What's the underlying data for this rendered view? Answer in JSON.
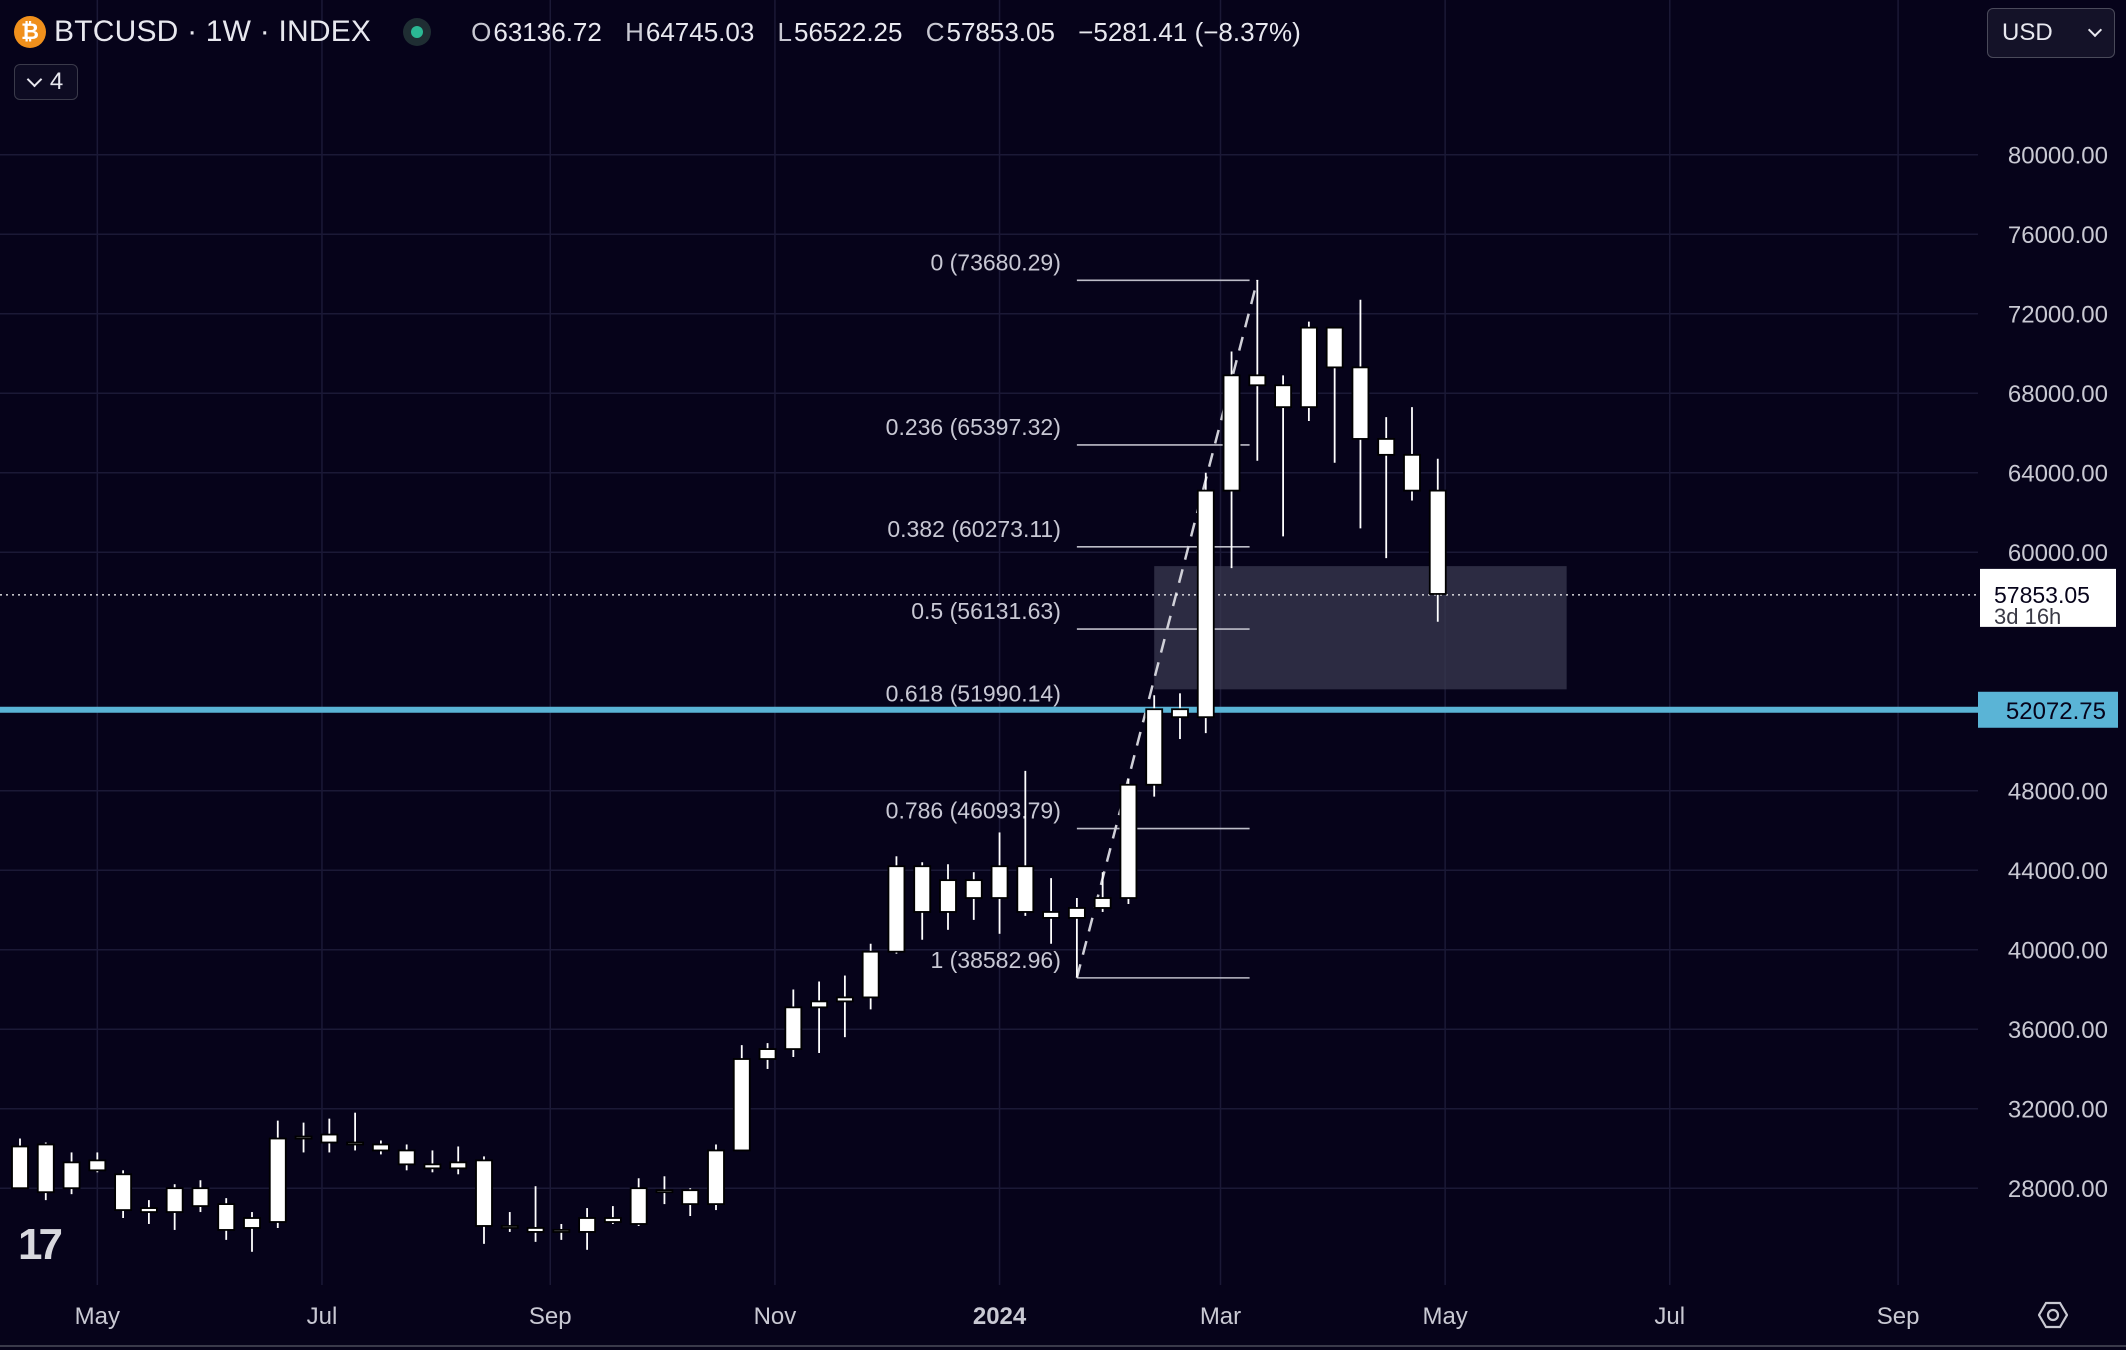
{
  "header": {
    "symbol_badge": "₿",
    "symbol_title": "BTCUSD · 1W · INDEX",
    "ohlc": {
      "open_label": "O",
      "open": "63136.72",
      "high_label": "H",
      "high": "64745.03",
      "low_label": "L",
      "low": "56522.25",
      "close_label": "C",
      "close": "57853.05",
      "change": "−5281.41 (−8.37%)"
    },
    "collapse_count": "4",
    "currency": "USD"
  },
  "colors": {
    "background": "#06031a",
    "candle_body": "#ffffff",
    "grid": "#1b1936",
    "hline": "#5ab4d6",
    "zone": "#3a3950"
  },
  "chart_data": {
    "type": "candlestick",
    "timeframe": "1W",
    "y_ticks": [
      "80000.00",
      "76000.00",
      "72000.00",
      "68000.00",
      "64000.00",
      "60000.00",
      "48000.00",
      "44000.00",
      "40000.00",
      "36000.00",
      "32000.00",
      "28000.00"
    ],
    "y_tick_values": [
      80000,
      76000,
      72000,
      68000,
      64000,
      60000,
      48000,
      44000,
      40000,
      36000,
      32000,
      28000
    ],
    "x_ticks": [
      {
        "label": "May",
        "date": "2023-05-01",
        "bold": false
      },
      {
        "label": "Jul",
        "date": "2023-07-01",
        "bold": false
      },
      {
        "label": "Sep",
        "date": "2023-09-01",
        "bold": false
      },
      {
        "label": "Nov",
        "date": "2023-11-01",
        "bold": false
      },
      {
        "label": "2024",
        "date": "2024-01-01",
        "bold": true
      },
      {
        "label": "Mar",
        "date": "2024-03-01",
        "bold": false
      },
      {
        "label": "May",
        "date": "2024-05-01",
        "bold": false
      },
      {
        "label": "Jul",
        "date": "2024-07-01",
        "bold": false
      },
      {
        "label": "Sep",
        "date": "2024-09-01",
        "bold": false
      }
    ],
    "x_range": [
      "2023-04-10",
      "2024-09-17"
    ],
    "ylim": [
      26400,
      82200
    ],
    "current_price": {
      "label": "57853.05",
      "countdown": "3d 16h",
      "value": 57853.05
    },
    "horizontal_line": {
      "label": "52072.75",
      "value": 52072.75
    },
    "zone": {
      "from": "2024-02-12",
      "to": "2024-06-03",
      "low": 53100,
      "high": 59300
    },
    "fib_retracement": {
      "from_date": "2024-01-22",
      "to_date": "2024-03-04",
      "levels": [
        {
          "label": "0 (73680.29)",
          "value": 73680.29
        },
        {
          "label": "0.236 (65397.32)",
          "value": 65397.32
        },
        {
          "label": "0.382 (60273.11)",
          "value": 60273.11
        },
        {
          "label": "0.5 (56131.63)",
          "value": 56131.63
        },
        {
          "label": "0.618 (51990.14)",
          "value": 51990.14
        },
        {
          "label": "0.786 (46093.79)",
          "value": 46093.79
        },
        {
          "label": "1 (38582.96)",
          "value": 38582.96
        }
      ]
    },
    "candles": [
      {
        "date": "2023-04-10",
        "o": 30100,
        "h": 30500,
        "l": 28500,
        "c": 28000
      },
      {
        "date": "2023-04-17",
        "o": 27800,
        "h": 30300,
        "l": 27400,
        "c": 30200
      },
      {
        "date": "2023-04-24",
        "o": 29300,
        "h": 29800,
        "l": 27700,
        "c": 28000
      },
      {
        "date": "2023-05-01",
        "o": 29400,
        "h": 29800,
        "l": 28800,
        "c": 28900
      },
      {
        "date": "2023-05-08",
        "o": 28700,
        "h": 28900,
        "l": 26500,
        "c": 26900
      },
      {
        "date": "2023-05-15",
        "o": 26800,
        "h": 27400,
        "l": 26200,
        "c": 27000
      },
      {
        "date": "2023-05-22",
        "o": 26800,
        "h": 28200,
        "l": 25900,
        "c": 28000
      },
      {
        "date": "2023-05-29",
        "o": 28000,
        "h": 28400,
        "l": 26800,
        "c": 27100
      },
      {
        "date": "2023-06-05",
        "o": 27200,
        "h": 27500,
        "l": 25400,
        "c": 25900
      },
      {
        "date": "2023-06-12",
        "o": 26000,
        "h": 26800,
        "l": 24800,
        "c": 26500
      },
      {
        "date": "2023-06-19",
        "o": 26300,
        "h": 31400,
        "l": 26000,
        "c": 30500
      },
      {
        "date": "2023-06-26",
        "o": 30500,
        "h": 31300,
        "l": 29800,
        "c": 30600
      },
      {
        "date": "2023-07-03",
        "o": 30300,
        "h": 31500,
        "l": 29800,
        "c": 30700
      },
      {
        "date": "2023-07-10",
        "o": 30300,
        "h": 31800,
        "l": 29900,
        "c": 30200
      },
      {
        "date": "2023-07-17",
        "o": 30200,
        "h": 30400,
        "l": 29700,
        "c": 29900
      },
      {
        "date": "2023-07-24",
        "o": 29900,
        "h": 30200,
        "l": 28900,
        "c": 29200
      },
      {
        "date": "2023-07-31",
        "o": 29200,
        "h": 29900,
        "l": 28800,
        "c": 29000
      },
      {
        "date": "2023-08-07",
        "o": 29000,
        "h": 30100,
        "l": 28700,
        "c": 29300
      },
      {
        "date": "2023-08-14",
        "o": 29400,
        "h": 29600,
        "l": 25200,
        "c": 26100
      },
      {
        "date": "2023-08-21",
        "o": 26100,
        "h": 26800,
        "l": 25800,
        "c": 26000
      },
      {
        "date": "2023-08-28",
        "o": 26000,
        "h": 28100,
        "l": 25300,
        "c": 25800
      },
      {
        "date": "2023-09-04",
        "o": 25800,
        "h": 26200,
        "l": 25400,
        "c": 25900
      },
      {
        "date": "2023-09-11",
        "o": 25800,
        "h": 27000,
        "l": 24900,
        "c": 26500
      },
      {
        "date": "2023-09-18",
        "o": 26500,
        "h": 27100,
        "l": 26200,
        "c": 26300
      },
      {
        "date": "2023-09-25",
        "o": 26200,
        "h": 28500,
        "l": 26100,
        "c": 28000
      },
      {
        "date": "2023-10-02",
        "o": 27900,
        "h": 28600,
        "l": 27200,
        "c": 27900
      },
      {
        "date": "2023-10-09",
        "o": 27900,
        "h": 28000,
        "l": 26600,
        "c": 27200
      },
      {
        "date": "2023-10-16",
        "o": 27200,
        "h": 30200,
        "l": 26900,
        "c": 29900
      },
      {
        "date": "2023-10-23",
        "o": 29900,
        "h": 35200,
        "l": 29900,
        "c": 34500
      },
      {
        "date": "2023-10-30",
        "o": 34500,
        "h": 35300,
        "l": 34000,
        "c": 35000
      },
      {
        "date": "2023-11-06",
        "o": 35000,
        "h": 38000,
        "l": 34600,
        "c": 37100
      },
      {
        "date": "2023-11-13",
        "o": 37100,
        "h": 38400,
        "l": 34800,
        "c": 37400
      },
      {
        "date": "2023-11-20",
        "o": 37400,
        "h": 38700,
        "l": 35600,
        "c": 37600
      },
      {
        "date": "2023-11-27",
        "o": 37600,
        "h": 40300,
        "l": 37000,
        "c": 39900
      },
      {
        "date": "2023-12-04",
        "o": 39900,
        "h": 44700,
        "l": 39800,
        "c": 44200
      },
      {
        "date": "2023-12-11",
        "o": 44200,
        "h": 44400,
        "l": 40500,
        "c": 41900
      },
      {
        "date": "2023-12-18",
        "o": 41900,
        "h": 44300,
        "l": 41000,
        "c": 43500
      },
      {
        "date": "2023-12-25",
        "o": 43500,
        "h": 43900,
        "l": 41500,
        "c": 42600
      },
      {
        "date": "2024-01-01",
        "o": 42600,
        "h": 45900,
        "l": 40800,
        "c": 44200
      },
      {
        "date": "2024-01-08",
        "o": 44200,
        "h": 49000,
        "l": 41700,
        "c": 41900
      },
      {
        "date": "2024-01-15",
        "o": 41900,
        "h": 43600,
        "l": 40300,
        "c": 41600
      },
      {
        "date": "2024-01-22",
        "o": 41600,
        "h": 42600,
        "l": 38600,
        "c": 42100
      },
      {
        "date": "2024-01-29",
        "o": 42100,
        "h": 43900,
        "l": 41900,
        "c": 42600
      },
      {
        "date": "2024-02-05",
        "o": 42600,
        "h": 48600,
        "l": 42300,
        "c": 48300
      },
      {
        "date": "2024-02-12",
        "o": 48300,
        "h": 52800,
        "l": 47700,
        "c": 52100
      },
      {
        "date": "2024-02-19",
        "o": 52100,
        "h": 52900,
        "l": 50600,
        "c": 51700
      },
      {
        "date": "2024-02-26",
        "o": 51700,
        "h": 64000,
        "l": 50900,
        "c": 63100
      },
      {
        "date": "2024-03-04",
        "o": 63100,
        "h": 70100,
        "l": 59200,
        "c": 68900
      },
      {
        "date": "2024-03-11",
        "o": 68900,
        "h": 73700,
        "l": 64600,
        "c": 68400
      },
      {
        "date": "2024-03-18",
        "o": 68400,
        "h": 68900,
        "l": 60800,
        "c": 67300
      },
      {
        "date": "2024-03-25",
        "o": 67300,
        "h": 71600,
        "l": 66600,
        "c": 71300
      },
      {
        "date": "2024-04-01",
        "o": 71300,
        "h": 71200,
        "l": 64500,
        "c": 69300
      },
      {
        "date": "2024-04-08",
        "o": 69300,
        "h": 72700,
        "l": 61200,
        "c": 65700
      },
      {
        "date": "2024-04-15",
        "o": 65700,
        "h": 66800,
        "l": 59700,
        "c": 64900
      },
      {
        "date": "2024-04-22",
        "o": 64900,
        "h": 67300,
        "l": 62600,
        "c": 63100
      },
      {
        "date": "2024-04-29",
        "o": 63100,
        "h": 64700,
        "l": 56500,
        "c": 57900
      }
    ]
  }
}
